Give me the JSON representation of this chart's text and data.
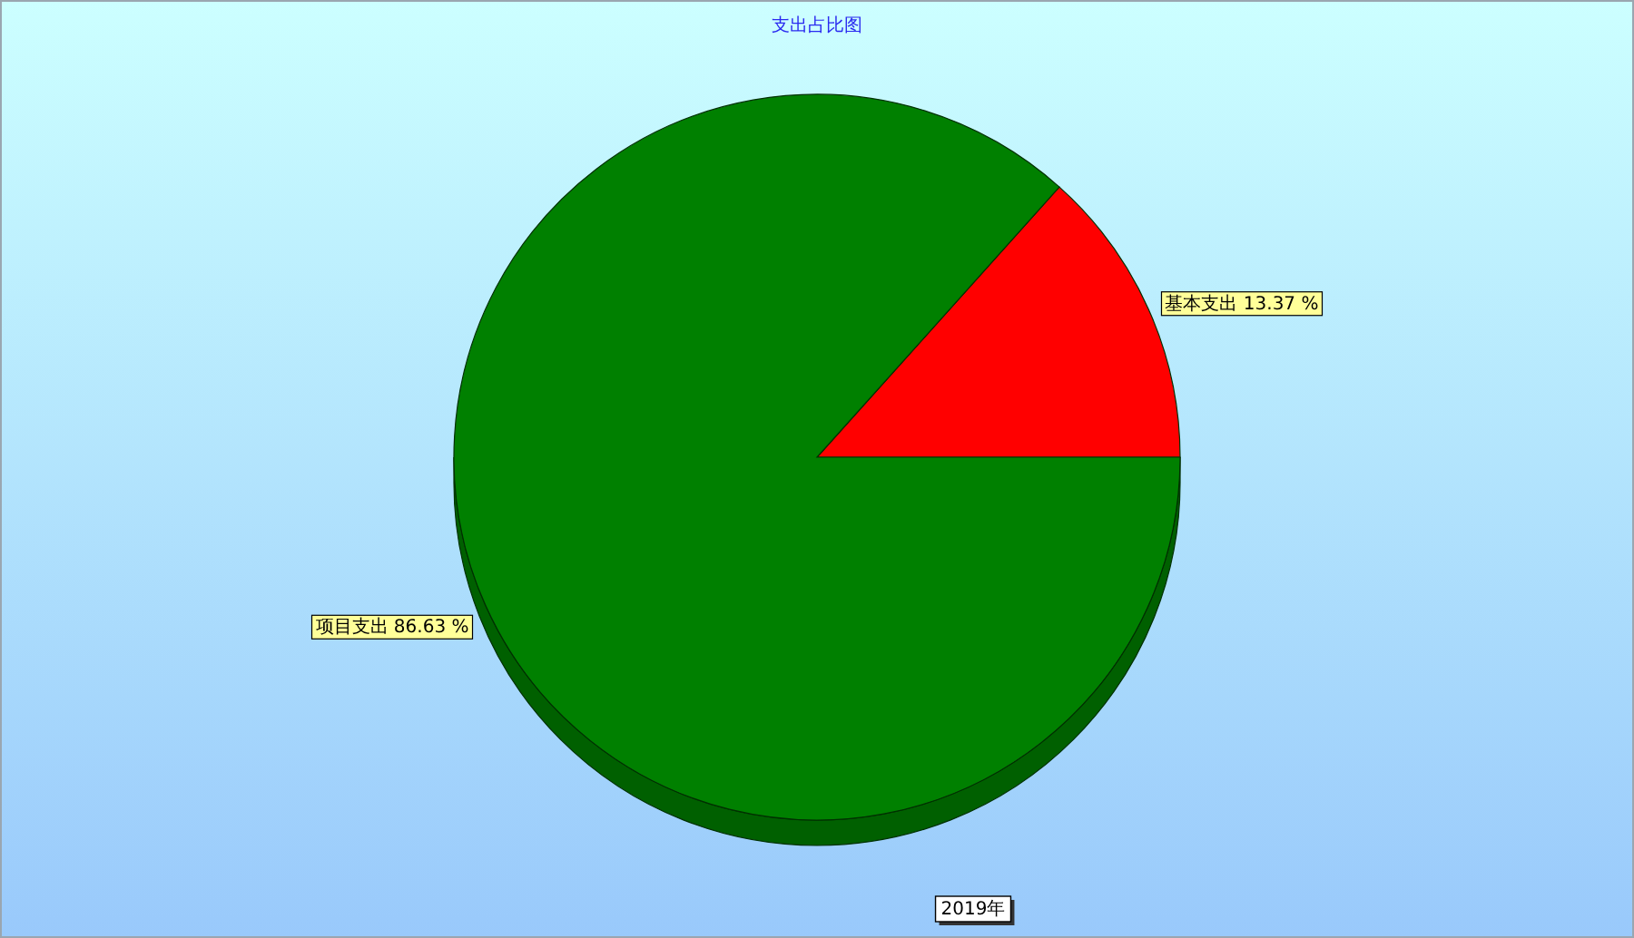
{
  "chart_data": {
    "type": "pie",
    "title": "支出占比图",
    "xlabel": "2019年",
    "categories": [
      "基本支出",
      "项目支出"
    ],
    "values": [
      13.37,
      86.63
    ],
    "value_labels": [
      "13.37 %",
      "86.63 %"
    ],
    "colors": [
      "#ff0000",
      "#008000"
    ],
    "legend": false
  }
}
